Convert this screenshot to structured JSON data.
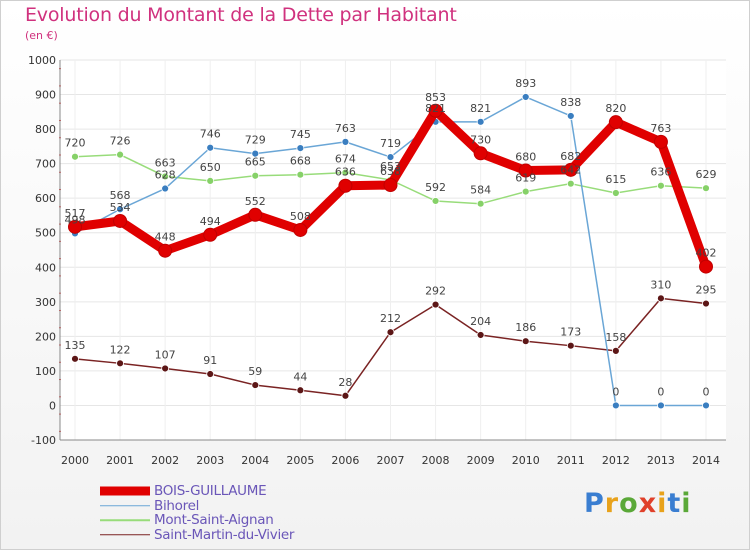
{
  "title": "Evolution du Montant de la Dette par Habitant",
  "subtitle": "(en €)",
  "logo": {
    "letters": [
      "P",
      "r",
      "o",
      "x",
      "i",
      "t",
      "i"
    ],
    "colors": [
      "#3a7ed1",
      "#e8a21b",
      "#5aa838",
      "#e0402a",
      "#e8a21b",
      "#3a7ed1",
      "#5aa838"
    ]
  },
  "chart_data": {
    "type": "line",
    "x": [
      "2000",
      "2001",
      "2002",
      "2003",
      "2004",
      "2005",
      "2006",
      "2007",
      "2008",
      "2009",
      "2010",
      "2011",
      "2012",
      "2013",
      "2014"
    ],
    "ylim": [
      -100,
      1000
    ],
    "yticks": [
      "-100",
      "0",
      "100",
      "200",
      "300",
      "400",
      "500",
      "600",
      "700",
      "800",
      "900",
      "1000"
    ],
    "grid": true,
    "legend_position": "bottom-left",
    "series": [
      {
        "name": "BOIS-GUILLAUME",
        "color": "#e00000",
        "marker": "#e00000",
        "values": [
          517,
          534,
          448,
          494,
          552,
          508,
          636,
          638,
          853,
          730,
          680,
          682,
          820,
          763,
          402
        ],
        "labels": [
          "517",
          "534",
          "448",
          "494",
          "552",
          "508",
          "636",
          "638",
          "853",
          "730",
          "680",
          "682",
          "820",
          "763",
          "402"
        ]
      },
      {
        "name": "Bihorel",
        "color": "#6aa6d6",
        "marker": "#3a7ec0",
        "values": [
          498,
          568,
          628,
          746,
          729,
          745,
          763,
          719,
          821,
          821,
          893,
          838,
          0,
          0,
          0
        ],
        "labels": [
          "498",
          "568",
          "628",
          "746",
          "729",
          "745",
          "763",
          "719",
          "821",
          "821",
          "893",
          "838",
          "0",
          "0",
          "0"
        ]
      },
      {
        "name": "Mont-Saint-Aignan",
        "color": "#98dc7a",
        "marker": "#86d168",
        "values": [
          720,
          726,
          663,
          650,
          665,
          668,
          674,
          653,
          592,
          584,
          619,
          642,
          615,
          636,
          629
        ],
        "labels": [
          "720",
          "726",
          "663",
          "650",
          "665",
          "668",
          "674",
          "653",
          "592",
          "584",
          "619",
          "642",
          "615",
          "636",
          "629"
        ]
      },
      {
        "name": "Saint-Martin-du-Vivier",
        "color": "#7a2323",
        "marker": "#5c1616",
        "values": [
          135,
          122,
          107,
          91,
          59,
          44,
          28,
          212,
          292,
          204,
          186,
          173,
          158,
          310,
          295
        ],
        "labels": [
          "135",
          "122",
          "107",
          "91",
          "59",
          "44",
          "28",
          "212",
          "292",
          "204",
          "186",
          "173",
          "158",
          "310",
          "295"
        ]
      }
    ]
  }
}
